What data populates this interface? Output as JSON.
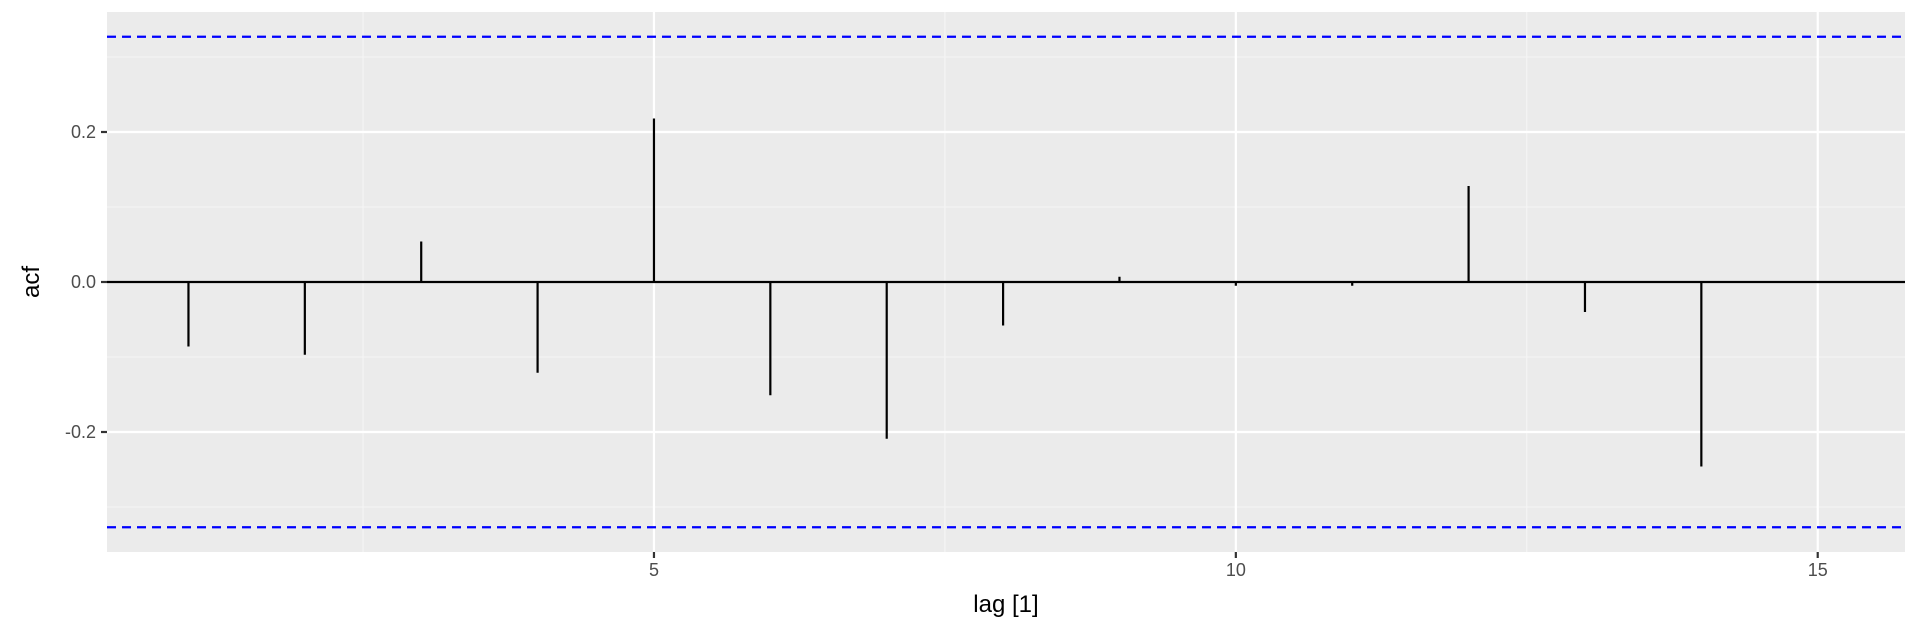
{
  "chart_data": {
    "type": "bar",
    "title": "",
    "xlabel": "lag [1]",
    "ylabel": "acf",
    "x": [
      1,
      2,
      3,
      4,
      5,
      6,
      7,
      8,
      9,
      10,
      11,
      12,
      13,
      14
    ],
    "values": [
      -0.086,
      -0.097,
      0.054,
      -0.121,
      0.218,
      -0.151,
      -0.209,
      -0.058,
      0.007,
      -0.005,
      -0.005,
      0.128,
      -0.04,
      -0.246
    ],
    "xlim": [
      0.3,
      15.75
    ],
    "ylim": [
      -0.36,
      0.36
    ],
    "x_ticks": [
      5,
      10,
      15
    ],
    "x_tick_labels": [
      "5",
      "10",
      "15"
    ],
    "y_ticks": [
      -0.2,
      0.0,
      0.2
    ],
    "y_tick_labels": [
      "-0.2",
      "0.0",
      "0.2"
    ],
    "confidence_bound": 0.327,
    "grid": true,
    "colors": {
      "panel_background": "#ebebeb",
      "grid_major": "#ffffff",
      "grid_minor": "#f5f5f5",
      "bars": "#000000",
      "bounds": "#0000ff"
    }
  }
}
